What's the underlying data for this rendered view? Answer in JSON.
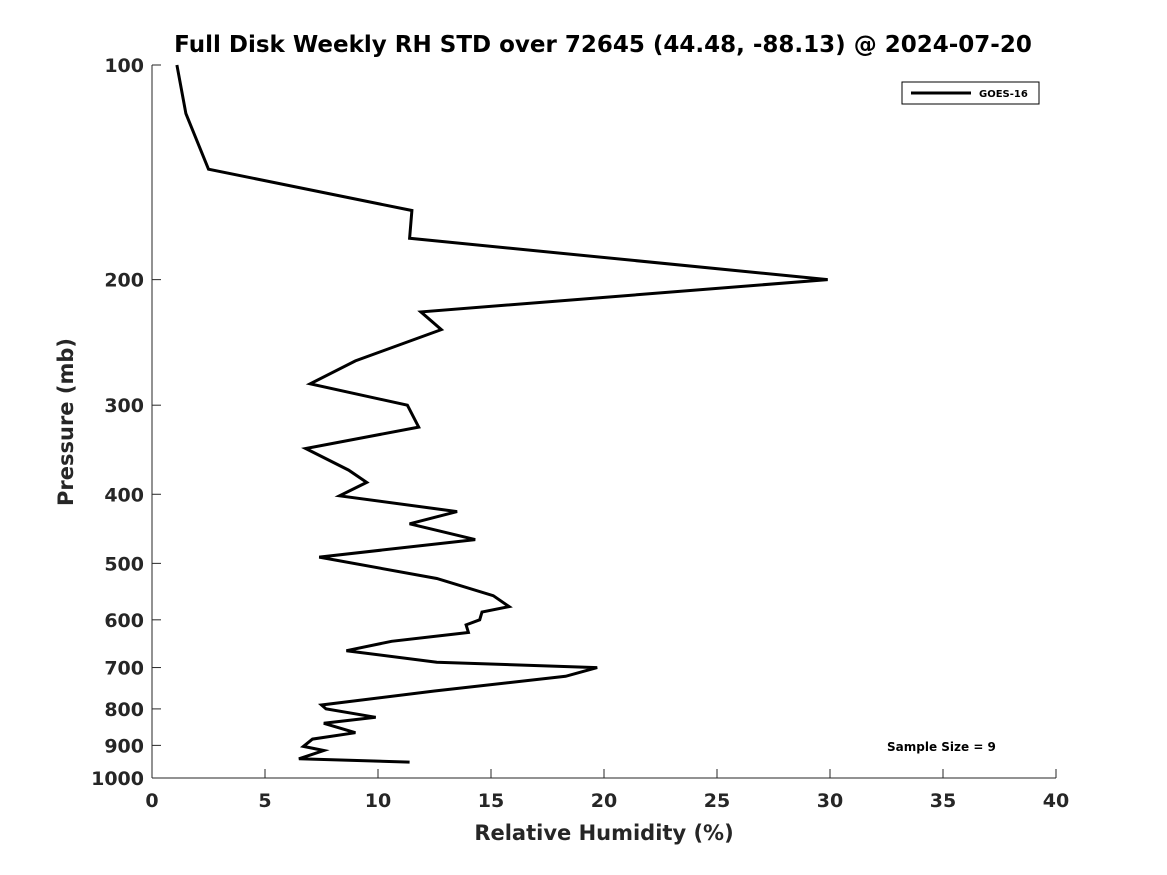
{
  "chart_data": {
    "type": "line",
    "title": "Full Disk Weekly RH STD over 72645 (44.48, -88.13) @ 2024-07-20",
    "xlabel": "Relative Humidity (%)",
    "ylabel": "Pressure (mb)",
    "xlim": [
      0,
      40
    ],
    "ylim": [
      100,
      1000
    ],
    "yscale": "log",
    "y_reversed": true,
    "xticks": [
      0,
      5,
      10,
      15,
      20,
      25,
      30,
      35,
      40
    ],
    "xtick_labels": [
      "0",
      "5",
      "10",
      "15",
      "20",
      "25",
      "30",
      "35",
      "40"
    ],
    "yticks": [
      100,
      200,
      300,
      400,
      500,
      600,
      700,
      800,
      900,
      1000
    ],
    "ytick_labels": [
      "100",
      "200",
      "300",
      "400",
      "500",
      "600",
      "700",
      "800",
      "900",
      "1000"
    ],
    "grid": false,
    "legend_position": "top-right",
    "series": [
      {
        "name": "GOES-16",
        "color": "#000000",
        "x": [
          1.1,
          1.5,
          2.5,
          11.5,
          11.4,
          29.9,
          11.9,
          12.8,
          9.0,
          7.0,
          11.3,
          11.8,
          6.8,
          8.7,
          9.5,
          8.3,
          13.5,
          11.4,
          14.3,
          7.4,
          12.6,
          15.1,
          15.8,
          14.6,
          14.5,
          13.9,
          14.0,
          10.6,
          8.6,
          12.6,
          19.7,
          18.3,
          12.5,
          7.5,
          7.7,
          9.9,
          7.6,
          9.0,
          7.1,
          6.7,
          7.6,
          6.5,
          11.4
        ],
        "y": [
          100,
          117,
          140,
          160,
          175,
          200,
          222,
          235,
          260,
          280,
          300,
          322,
          345,
          370,
          385,
          402,
          423,
          440,
          463,
          490,
          525,
          555,
          575,
          585,
          600,
          610,
          625,
          643,
          663,
          688,
          700,
          720,
          755,
          790,
          800,
          822,
          838,
          864,
          882,
          903,
          915,
          940,
          950
        ]
      }
    ],
    "annotations": [
      "Sample Size = 9"
    ]
  }
}
